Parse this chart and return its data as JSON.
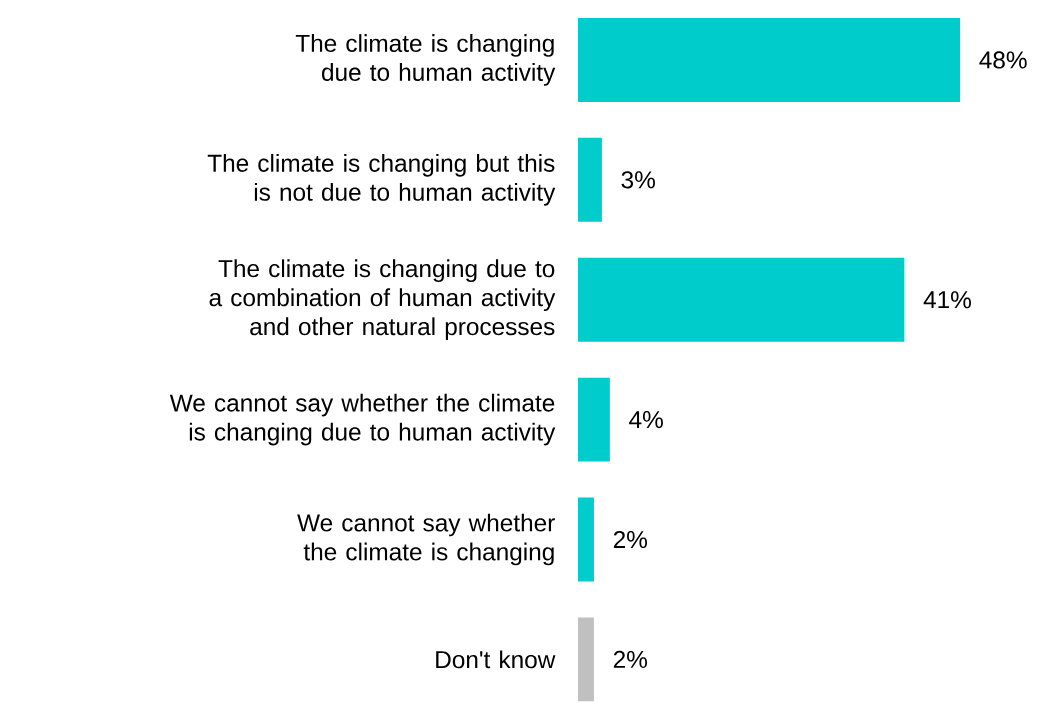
{
  "chart_data": {
    "type": "bar",
    "orientation": "horizontal",
    "categories": [
      "The climate is changing due to human activity",
      "The climate is changing but this is not due to human activity",
      "The climate is changing due to a combination of human activity and other natural processes",
      "We cannot say whether the climate is changing due to human activity",
      "We cannot say whether the climate is changing",
      "Don't know"
    ],
    "values": [
      48,
      3,
      41,
      4,
      2,
      2
    ],
    "value_labels": [
      "48%",
      "3%",
      "41%",
      "4%",
      "2%",
      "2%"
    ],
    "colors": [
      "#00cccc",
      "#00cccc",
      "#00cccc",
      "#00cccc",
      "#00cccc",
      "#c0c0c0"
    ]
  }
}
